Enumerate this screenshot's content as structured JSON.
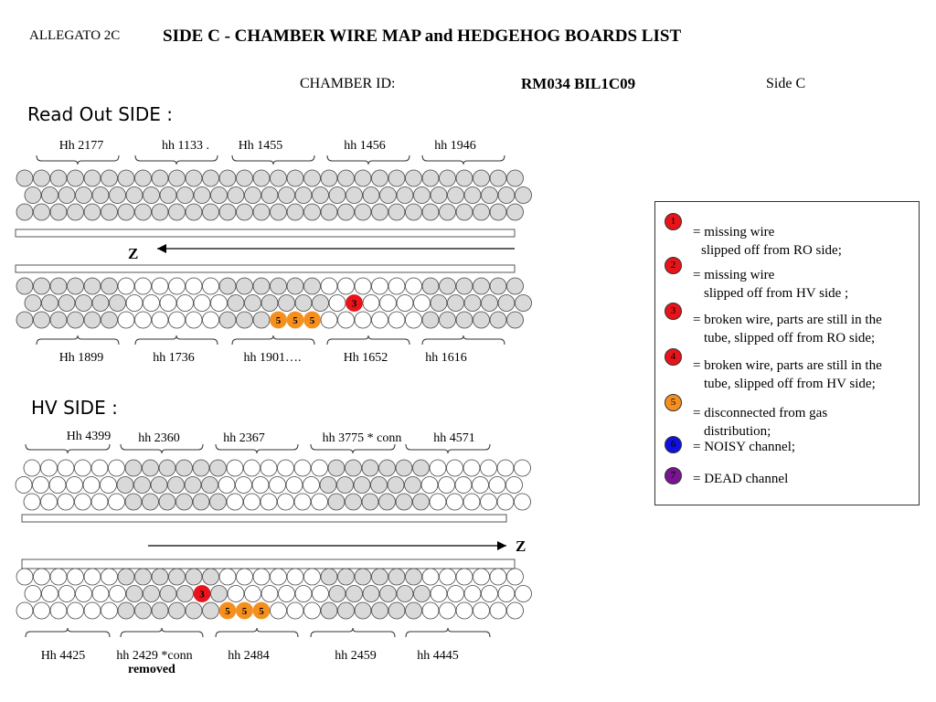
{
  "header": {
    "annex": "ALLEGATO 2C",
    "title": "SIDE C - CHAMBER WIRE MAP and HEDGEHOG BOARDS LIST",
    "chamber_id_label": "CHAMBER ID:",
    "chamber_id_value": "RM034 BIL1C09",
    "side": "Side C"
  },
  "readout": {
    "heading": "Read Out SIDE :",
    "top_boards": [
      "Hh 2177",
      "hh 1133 .",
      "Hh 1455",
      "hh  1456",
      "hh 1946"
    ],
    "bottom_boards": [
      "Hh 1899",
      "hh 1736",
      "hh 1901….",
      "Hh 1652",
      "hh 1616"
    ],
    "axis_label": "Z",
    "axis_direction": "left",
    "top_multilayer": {
      "shaded_groups": "all",
      "markers": []
    },
    "bottom_multilayer": {
      "shaded_groups": [
        0,
        2,
        4
      ],
      "markers": [
        {
          "row": 1,
          "col": 19,
          "type": 3
        },
        {
          "row": 2,
          "col": 15,
          "type": 5
        },
        {
          "row": 2,
          "col": 16,
          "type": 5
        },
        {
          "row": 2,
          "col": 17,
          "type": 5
        }
      ]
    }
  },
  "hv": {
    "heading": "HV SIDE :",
    "top_boards": [
      "Hh 4399",
      "hh 2360",
      "hh 2367",
      "hh 3775 * conn",
      "hh 4571"
    ],
    "bottom_boards": [
      "Hh 4425",
      "hh 2429 *conn",
      "hh 2484",
      "hh 2459",
      "hh 4445"
    ],
    "removed_note": "removed",
    "axis_label": "Z",
    "axis_direction": "right",
    "top_multilayer": {
      "shaded_groups": [
        1,
        3
      ],
      "markers": []
    },
    "bottom_multilayer": {
      "shaded_groups": [
        1,
        3
      ],
      "markers": [
        {
          "row": 1,
          "col": 10,
          "type": 3
        },
        {
          "row": 2,
          "col": 12,
          "type": 5
        },
        {
          "row": 2,
          "col": 13,
          "type": 5
        },
        {
          "row": 2,
          "col": 14,
          "type": 5
        }
      ]
    }
  },
  "legend": {
    "items": [
      {
        "num": "1",
        "color": "#e8141b",
        "line1": "= missing wire",
        "line2": "slipped off from RO side;"
      },
      {
        "num": "2",
        "color": "#e8141b",
        "line1": "= missing wire",
        "line2": "slipped off from HV side ;"
      },
      {
        "num": "3",
        "color": "#e8141b",
        "line1": "= broken wire, parts are still in the",
        "line2": "tube, slipped off from RO side;"
      },
      {
        "num": "4",
        "color": "#e8141b",
        "line1": "= broken wire, parts are still in the",
        "line2": " tube,  slipped off from HV side;"
      },
      {
        "num": "5",
        "color": "#f5901e",
        "line1": "= disconnected from gas",
        "line2": "distribution;"
      },
      {
        "num": "6",
        "color": "#1010e0",
        "line1": "= NOISY channel;",
        "line2": ""
      },
      {
        "num": "7",
        "color": "#7a1590",
        "line1": "= DEAD channel",
        "line2": ""
      }
    ]
  },
  "colors": {
    "shaded_tube": "#d9d9d9",
    "white_tube": "#ffffff",
    "broken_wire": "#e8141b",
    "gas_disconnected": "#f5901e"
  }
}
